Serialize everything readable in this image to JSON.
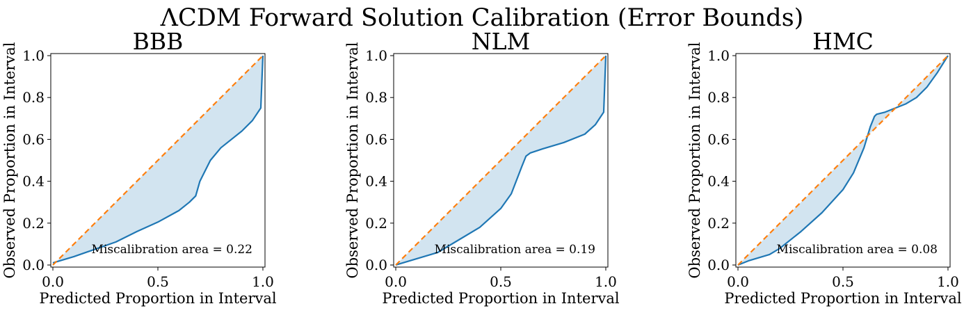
{
  "figure": {
    "suptitle": "ΛCDM Forward Solution Calibration (Error Bounds)"
  },
  "colors": {
    "calibration_curve": "#1f77b4",
    "ideal_line": "#ff7f0e",
    "fill": "#1f77b4",
    "fill_opacity": 0.2,
    "axes": "#000000"
  },
  "chart_data": [
    {
      "type": "line",
      "title": "BBB",
      "xlabel": "Predicted Proportion in Interval",
      "ylabel": "Observed Proportion in Interval",
      "xlim": [
        0,
        1
      ],
      "ylim": [
        0,
        1
      ],
      "xticks": [
        0,
        0.5,
        1
      ],
      "xtick_labels": [
        "0.0",
        "0.5",
        "1.0"
      ],
      "yticks": [
        0,
        0.2,
        0.4,
        0.6,
        0.8,
        1
      ],
      "ytick_labels": [
        "0.0",
        "0.2",
        "0.4",
        "0.6",
        "0.8",
        "1.0"
      ],
      "grid": false,
      "annotation": "Miscalibration area = 0.22",
      "series": [
        {
          "style": "solid",
          "fill_to_diagonal": true,
          "x": [
            0,
            0.1,
            0.2,
            0.3,
            0.4,
            0.5,
            0.6,
            0.65,
            0.68,
            0.7,
            0.75,
            0.8,
            0.9,
            0.95,
            0.99,
            1.0
          ],
          "y": [
            0.01,
            0.04,
            0.075,
            0.11,
            0.16,
            0.205,
            0.26,
            0.3,
            0.33,
            0.4,
            0.5,
            0.56,
            0.64,
            0.69,
            0.75,
            1.0
          ]
        },
        {
          "style": "dashed",
          "x": [
            0,
            1
          ],
          "y": [
            0,
            1
          ]
        }
      ]
    },
    {
      "type": "line",
      "title": "NLM",
      "xlabel": "Predicted Proportion in Interval",
      "ylabel": "Observed Proportion in Interval",
      "xlim": [
        0,
        1
      ],
      "ylim": [
        0,
        1
      ],
      "xticks": [
        0,
        0.5,
        1
      ],
      "xtick_labels": [
        "0.0",
        "0.5",
        "1.0"
      ],
      "yticks": [
        0,
        0.2,
        0.4,
        0.6,
        0.8,
        1
      ],
      "ytick_labels": [
        "0.0",
        "0.2",
        "0.4",
        "0.6",
        "0.8",
        "1.0"
      ],
      "grid": false,
      "annotation": "Miscalibration area = 0.19",
      "series": [
        {
          "style": "solid",
          "fill_to_diagonal": true,
          "x": [
            0,
            0.1,
            0.2,
            0.3,
            0.4,
            0.5,
            0.55,
            0.6,
            0.62,
            0.64,
            0.7,
            0.8,
            0.9,
            0.95,
            0.99,
            1.0
          ],
          "y": [
            0.0,
            0.03,
            0.06,
            0.12,
            0.18,
            0.27,
            0.34,
            0.47,
            0.52,
            0.535,
            0.555,
            0.585,
            0.625,
            0.67,
            0.73,
            1.0
          ]
        },
        {
          "style": "dashed",
          "x": [
            0,
            1
          ],
          "y": [
            0,
            1
          ]
        }
      ]
    },
    {
      "type": "line",
      "title": "HMC",
      "xlabel": "Predicted Proportion in Interval",
      "ylabel": "Observed Proportion in Interval",
      "xlim": [
        0,
        1
      ],
      "ylim": [
        0,
        1
      ],
      "xticks": [
        0,
        0.5,
        1
      ],
      "xtick_labels": [
        "0.0",
        "0.5",
        "1.0"
      ],
      "yticks": [
        0,
        0.2,
        0.4,
        0.6,
        0.8,
        1
      ],
      "ytick_labels": [
        "0.0",
        "0.2",
        "0.4",
        "0.6",
        "0.8",
        "1.0"
      ],
      "grid": false,
      "annotation": "Miscalibration area = 0.08",
      "series": [
        {
          "style": "solid",
          "fill_to_diagonal": true,
          "x": [
            0,
            0.05,
            0.15,
            0.2,
            0.3,
            0.4,
            0.5,
            0.55,
            0.6,
            0.63,
            0.65,
            0.66,
            0.7,
            0.8,
            0.85,
            0.9,
            0.95,
            1.0
          ],
          "y": [
            0.0,
            0.02,
            0.05,
            0.08,
            0.16,
            0.25,
            0.36,
            0.44,
            0.56,
            0.66,
            0.71,
            0.72,
            0.73,
            0.77,
            0.8,
            0.85,
            0.92,
            1.0
          ]
        },
        {
          "style": "dashed",
          "x": [
            0,
            1
          ],
          "y": [
            0,
            1
          ]
        }
      ]
    }
  ]
}
